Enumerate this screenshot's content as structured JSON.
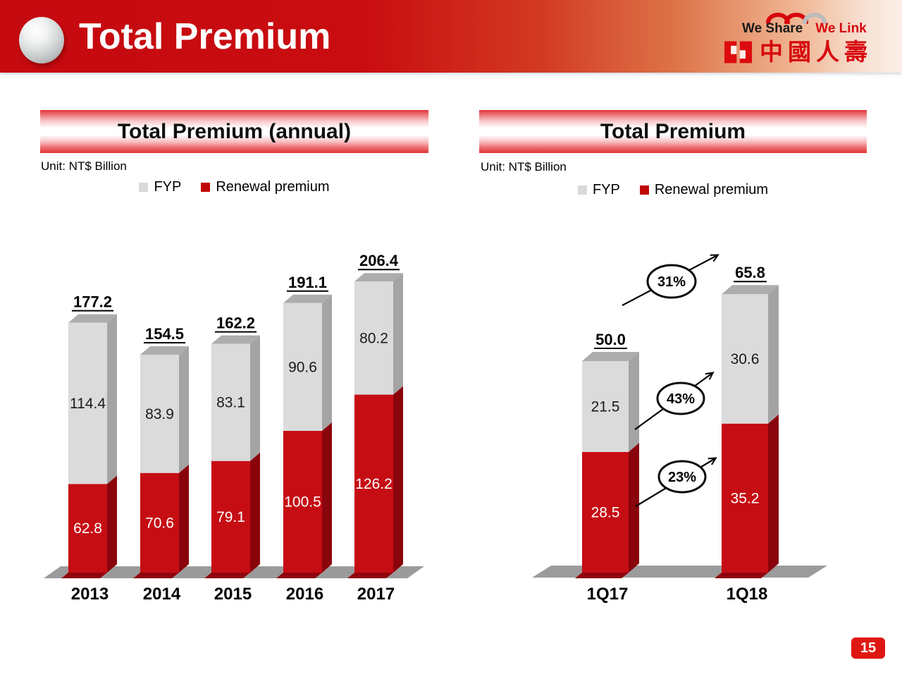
{
  "header": {
    "title": "Total Premium",
    "tagline_left": "We Share",
    "tagline_right": "We Link",
    "company_name": "中國人壽"
  },
  "page_number": "15",
  "colors": {
    "brand_red": "#C90C10",
    "bar_red_front": "#C60D14",
    "bar_red_side": "#8A040C",
    "bar_gray_front": "#DBDBDB",
    "bar_gray_side": "#A4A4A4",
    "banner_red": "#E13338",
    "floor_gray": "#9B9B9B"
  },
  "chart_data": [
    {
      "type": "bar",
      "subtype": "3d-stacked-column",
      "title": "Total Premium (annual)",
      "unit_label": "Unit: NT$ Billion",
      "categories": [
        "2013",
        "2014",
        "2015",
        "2016",
        "2017"
      ],
      "series": [
        {
          "name": "FYP",
          "color": "#DBDBDB",
          "values": [
            114.4,
            83.9,
            83.1,
            90.6,
            80.2
          ]
        },
        {
          "name": "Renewal premium",
          "color": "#C60D14",
          "values": [
            62.8,
            70.6,
            79.1,
            100.5,
            126.2
          ]
        }
      ],
      "totals": [
        177.2,
        154.5,
        162.2,
        191.1,
        206.4
      ],
      "legend_position": "top",
      "value_labels": "inside-segments",
      "total_labels": "above-bar-underlined",
      "grid": "off"
    },
    {
      "type": "bar",
      "subtype": "3d-stacked-column",
      "title": "Total Premium",
      "unit_label": "Unit: NT$ Billion",
      "categories": [
        "1Q17",
        "1Q18"
      ],
      "series": [
        {
          "name": "FYP",
          "color": "#DBDBDB",
          "values": [
            21.5,
            30.6
          ]
        },
        {
          "name": "Renewal premium",
          "color": "#C60D14",
          "values": [
            28.5,
            35.2
          ]
        }
      ],
      "totals": [
        50.0,
        65.8
      ],
      "growth_annotations": [
        {
          "label": "31%",
          "refers_to": "total"
        },
        {
          "label": "43%",
          "refers_to": "FYP"
        },
        {
          "label": "23%",
          "refers_to": "Renewal premium"
        }
      ],
      "legend_position": "top",
      "value_labels": "inside-segments",
      "total_labels": "above-bar-underlined",
      "grid": "off"
    }
  ]
}
